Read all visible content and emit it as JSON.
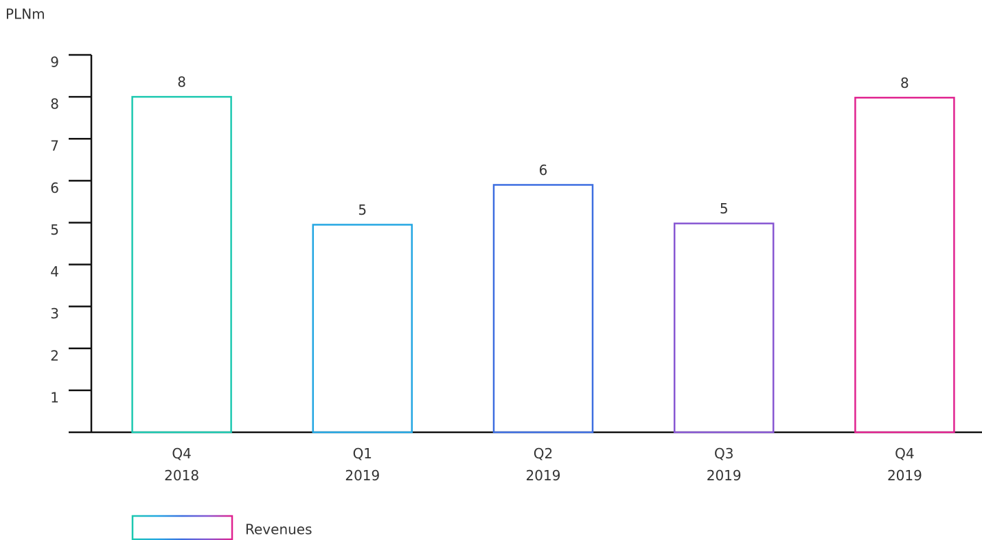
{
  "chart_data": {
    "type": "bar",
    "y_label": "PLNm",
    "categories": [
      "Q4 2018",
      "Q1 2019",
      "Q2 2019",
      "Q3 2019",
      "Q4 2019"
    ],
    "series": [
      {
        "name": "Revenues",
        "colors": [
          "#1cc8b0",
          "#22a6e2",
          "#3d6ee0",
          "#8756d2",
          "#e0228f"
        ],
        "values": [
          8,
          4.95,
          5.9,
          4.98,
          7.98
        ],
        "value_labels": [
          "8",
          "5",
          "6",
          "5",
          "8"
        ]
      }
    ],
    "ylim": [
      0,
      9
    ],
    "yticks": [
      1,
      2,
      3,
      4,
      5,
      6,
      7,
      8,
      9
    ],
    "legend": "bottom-left"
  }
}
